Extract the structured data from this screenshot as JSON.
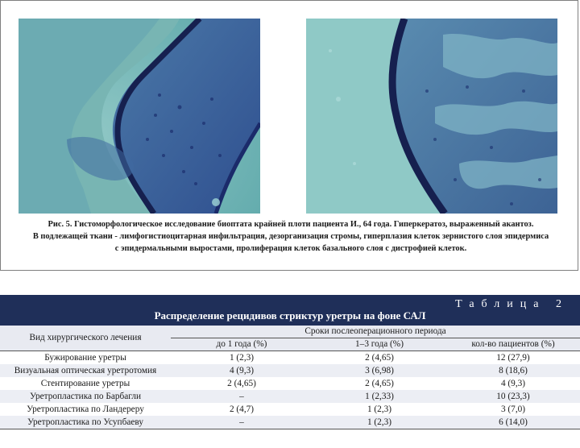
{
  "figure": {
    "caption_lines": [
      "Рис. 5. Гистоморфологическое исследование биоптата крайней плоти пациента И., 64 года. Гиперкератоз, выраженный акантоз.",
      "В подлежащей ткани - лимфогистиоцитарная инфильтрация, дезорганизация стромы, гиперплазия клеток зернистого слоя эпидермиса",
      "с эпидермальными выростами, пролиферация клеток базального слоя с дистрофией клеток."
    ]
  },
  "table": {
    "label": "Таблица 2",
    "title": "Распределение рецидивов стриктур уретры на фоне САЛ",
    "col_name": "Вид хирургического лечения",
    "col_group": "Сроки послеоперационного периода",
    "col_1": "до 1 года (%)",
    "col_2": "1–3 года (%)",
    "col_3": "кол-во пациентов (%)",
    "rows": [
      {
        "name": "Бужирование уретры",
        "c1": "1 (2,3)",
        "c2": "2 (4,65)",
        "c3": "12 (27,9)"
      },
      {
        "name": "Визуальная оптическая уретротомия",
        "c1": "4 (9,3)",
        "c2": "3 (6,98)",
        "c3": "8 (18,6)"
      },
      {
        "name": "Стентирование уретры",
        "c1": "2 (4,65)",
        "c2": "2 (4,65)",
        "c3": "4 (9,3)"
      },
      {
        "name": "Уретропластика по Барбагли",
        "c1": "–",
        "c2": "1 (2,33)",
        "c3": "10 (23,3)"
      },
      {
        "name": "Уретропластика по Ландереру",
        "c1": "2 (4,7)",
        "c2": "1 (2,3)",
        "c3": "3 (7,0)"
      },
      {
        "name": "Уретропластика по Усупбаеву",
        "c1": "–",
        "c2": "1 (2,3)",
        "c3": "6 (14,0)"
      }
    ]
  }
}
